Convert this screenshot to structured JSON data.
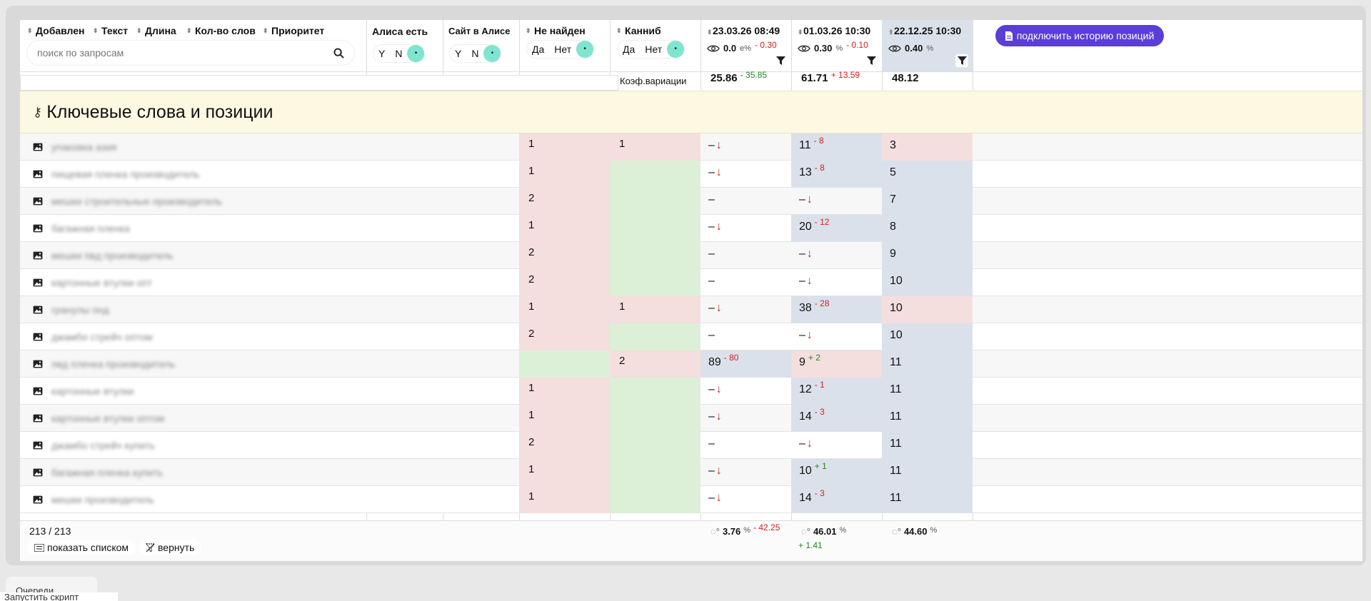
{
  "header": {
    "sort_columns": [
      "Добавлен",
      "Текст",
      "Длина",
      "Кол-во слов",
      "Приоритет"
    ],
    "search_placeholder": "поиск по запросам",
    "alisa_exists": {
      "label": "Алиса есть",
      "yes": "Y",
      "no": "N",
      "on": "•"
    },
    "site_in_alisa": {
      "label": "Сайт в Алисе",
      "yes": "Y",
      "no": "N",
      "on": "•"
    },
    "not_found": {
      "label": "Не найден",
      "yes": "Да",
      "no": "Нет",
      "on": "•"
    },
    "cannib": {
      "label": "Канниб",
      "yes": "Да",
      "no": "Нет",
      "on": "•"
    },
    "connect_history_button": "подключить историю позиций",
    "coef_label": "Коэф.вариации"
  },
  "dates": [
    {
      "label": "23.03.26 08:49",
      "vis": "0.0",
      "vis_suffix": "е%",
      "vis_delta": "- 0.30",
      "coef": "25.86",
      "coef_delta": "- 35.85",
      "stat": "3.76",
      "stat_delta": "- 42.25",
      "stat_delta_sign": "red"
    },
    {
      "label": "01.03.26 10:30",
      "vis": "0.30",
      "vis_suffix": "%",
      "vis_delta": "- 0.10",
      "coef": "61.71",
      "coef_delta": "+ 13.59",
      "stat": "46.01",
      "stat_delta": "+ 1.41",
      "stat_delta_sign": "grn"
    },
    {
      "label": "22.12.25 10:30",
      "vis": "0.40",
      "vis_suffix": "%",
      "vis_delta": "",
      "coef": "48.12",
      "coef_delta": "",
      "stat": "44.60",
      "stat_delta": "",
      "stat_delta_sign": ""
    }
  ],
  "section_title": "Ключевые слова и позиции",
  "rows": [
    {
      "kw": "упаковка азия",
      "nf": "1",
      "nfc": "pink",
      "cb": "1",
      "cbc": "pink",
      "p1": "–",
      "p1a": "↓",
      "p1d": "",
      "p1c": "",
      "p2": "11",
      "p2d": "- 8",
      "p2c": "blue",
      "p3": "3",
      "p3c": "pink"
    },
    {
      "kw": "пищевая пленка производитель",
      "nf": "1",
      "nfc": "pink",
      "cb": "",
      "cbc": "green",
      "p1": "–",
      "p1a": "↓",
      "p1d": "",
      "p1c": "",
      "p2": "13",
      "p2d": "- 8",
      "p2c": "blue",
      "p3": "5",
      "p3c": "blue"
    },
    {
      "kw": "мешки строительные производитель",
      "nf": "2",
      "nfc": "pink",
      "cb": "",
      "cbc": "green",
      "p1": "–",
      "p1a": "",
      "p1d": "",
      "p1c": "",
      "p2": "–",
      "p2a": "↓",
      "p2d": "",
      "p2c": "",
      "p3": "7",
      "p3c": "blue"
    },
    {
      "kw": "багажная пленка",
      "nf": "1",
      "nfc": "pink",
      "cb": "",
      "cbc": "green",
      "p1": "–",
      "p1a": "↓",
      "p1d": "",
      "p1c": "",
      "p2": "20",
      "p2d": "- 12",
      "p2c": "blue",
      "p3": "8",
      "p3c": "blue"
    },
    {
      "kw": "мешки пвд производитель",
      "nf": "2",
      "nfc": "pink",
      "cb": "",
      "cbc": "green",
      "p1": "–",
      "p1a": "",
      "p1d": "",
      "p1c": "",
      "p2": "–",
      "p2a": "↓",
      "p2d": "",
      "p2c": "",
      "p3": "9",
      "p3c": "blue"
    },
    {
      "kw": "картонные втулки опт",
      "nf": "2",
      "nfc": "pink",
      "cb": "",
      "cbc": "green",
      "p1": "–",
      "p1a": "",
      "p1d": "",
      "p1c": "",
      "p2": "–",
      "p2a": "↓",
      "p2d": "",
      "p2c": "",
      "p3": "10",
      "p3c": "blue"
    },
    {
      "kw": "гранулы пнд",
      "nf": "1",
      "nfc": "pink",
      "cb": "1",
      "cbc": "pink",
      "p1": "–",
      "p1a": "↓",
      "p1d": "",
      "p1c": "",
      "p2": "38",
      "p2d": "- 28",
      "p2c": "blue",
      "p3": "10",
      "p3c": "pink"
    },
    {
      "kw": "джамбо стрейч оптом",
      "nf": "2",
      "nfc": "pink",
      "cb": "",
      "cbc": "green",
      "p1": "–",
      "p1a": "",
      "p1d": "",
      "p1c": "",
      "p2": "–",
      "p2a": "↓",
      "p2d": "",
      "p2c": "",
      "p3": "10",
      "p3c": "blue"
    },
    {
      "kw": "пвд пленка производитель",
      "nf": "",
      "nfc": "green",
      "cb": "2",
      "cbc": "pink",
      "p1": "89",
      "p1a": "",
      "p1d": "- 80",
      "p1c": "blue",
      "p2": "9",
      "p2d": "+ 2",
      "p2g": true,
      "p2c": "pink",
      "p3": "11",
      "p3c": "blue"
    },
    {
      "kw": "картонные втулки",
      "nf": "1",
      "nfc": "pink",
      "cb": "",
      "cbc": "green",
      "p1": "–",
      "p1a": "↓",
      "p1d": "",
      "p1c": "",
      "p2": "12",
      "p2d": "- 1",
      "p2c": "blue",
      "p3": "11",
      "p3c": "blue"
    },
    {
      "kw": "картонные втулки оптом",
      "nf": "1",
      "nfc": "pink",
      "cb": "",
      "cbc": "green",
      "p1": "–",
      "p1a": "↓",
      "p1d": "",
      "p1c": "",
      "p2": "14",
      "p2d": "- 3",
      "p2c": "blue",
      "p3": "11",
      "p3c": "blue"
    },
    {
      "kw": "джамбо стрейч купить",
      "nf": "2",
      "nfc": "pink",
      "cb": "",
      "cbc": "green",
      "p1": "–",
      "p1a": "",
      "p1d": "",
      "p1c": "",
      "p2": "–",
      "p2a": "↓",
      "p2d": "",
      "p2c": "",
      "p3": "11",
      "p3c": "blue"
    },
    {
      "kw": "багажная пленка купить",
      "nf": "1",
      "nfc": "pink",
      "cb": "",
      "cbc": "green",
      "p1": "–",
      "p1a": "↓",
      "p1d": "",
      "p1c": "",
      "p2": "10",
      "p2d": "+ 1",
      "p2g": true,
      "p2c": "blue",
      "p3": "11",
      "p3c": "blue"
    },
    {
      "kw": "мешки производитель",
      "nf": "1",
      "nfc": "pink",
      "cb": "",
      "cbc": "green",
      "p1": "–",
      "p1a": "↓",
      "p1d": "",
      "p1c": "",
      "p2": "14",
      "p2d": "- 3",
      "p2c": "blue",
      "p3": "11",
      "p3c": "blue"
    }
  ],
  "footer": {
    "count": "213 / 213",
    "list_button": "показать списком",
    "reset_button": "вернуть"
  },
  "bottom": {
    "tab1": "Очереди",
    "tab2": "Запустить скрипт"
  },
  "colors": {
    "accent": "#5a3ed6",
    "toggle_on": "#7ee5d0",
    "pink": "#f4dede",
    "green": "#dcf0d8",
    "blue": "#dbe1ea",
    "banner": "#fdf8e1"
  }
}
